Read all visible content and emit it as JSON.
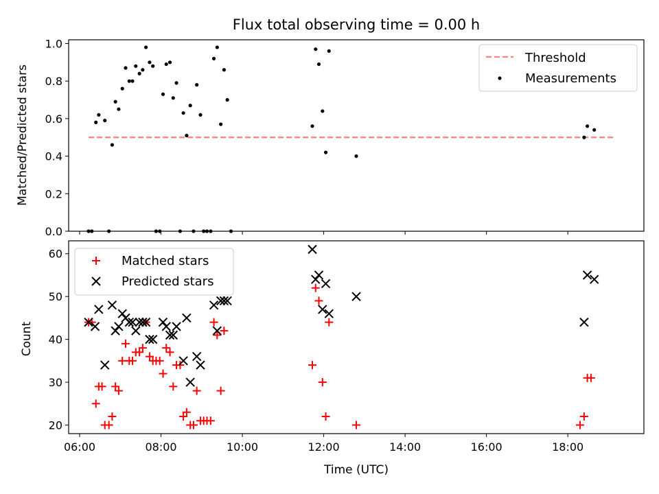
{
  "title": "Flux total observing time = 0.00 h",
  "xlabel": "Time (UTC)",
  "x_ticks": [
    "06:00",
    "08:00",
    "10:00",
    "12:00",
    "14:00",
    "16:00",
    "18:00"
  ],
  "colors": {
    "threshold": "#ff7f7f",
    "measurements": "#000000",
    "matched": "#ff0000",
    "predicted": "#000000"
  },
  "chart_data": [
    {
      "type": "scatter",
      "ylabel": "Matched/Predicted stars",
      "xlim": [
        5.73,
        19.87
      ],
      "ylim": [
        0.0,
        1.02
      ],
      "y_ticks": [
        "0.0",
        "0.2",
        "0.4",
        "0.6",
        "0.8",
        "1.0"
      ],
      "legend_position": "top-right",
      "threshold": {
        "name": "Threshold",
        "value": 0.5,
        "x_range": [
          6.22,
          19.13
        ]
      },
      "series": [
        {
          "name": "Measurements",
          "x": [
            6.22,
            6.3,
            6.4,
            6.47,
            6.62,
            6.72,
            6.8,
            6.88,
            6.96,
            7.05,
            7.13,
            7.22,
            7.3,
            7.38,
            7.47,
            7.55,
            7.63,
            7.72,
            7.8,
            7.88,
            7.97,
            8.05,
            8.13,
            8.22,
            8.3,
            8.38,
            8.47,
            8.55,
            8.63,
            8.72,
            8.8,
            8.88,
            8.97,
            9.05,
            9.13,
            9.22,
            9.3,
            9.38,
            9.47,
            9.55,
            9.63,
            9.72,
            11.72,
            11.8,
            11.88,
            11.97,
            12.05,
            12.13,
            12.8,
            18.4,
            18.48,
            18.65
          ],
          "y": [
            0.0,
            0.0,
            0.58,
            0.62,
            0.59,
            0.0,
            0.46,
            0.69,
            0.65,
            0.76,
            0.87,
            0.8,
            0.8,
            0.88,
            0.84,
            0.86,
            0.98,
            0.9,
            0.88,
            0.0,
            0.0,
            0.73,
            0.89,
            0.9,
            0.71,
            0.79,
            0.0,
            0.63,
            0.51,
            0.67,
            0.0,
            0.78,
            0.62,
            0.0,
            0.0,
            0.0,
            0.92,
            0.98,
            0.57,
            0.86,
            0.7,
            0.0,
            0.56,
            0.97,
            0.89,
            0.64,
            0.42,
            0.96,
            0.4,
            0.5,
            0.56,
            0.54
          ]
        }
      ]
    },
    {
      "type": "scatter",
      "ylabel": "Count",
      "xlim": [
        5.73,
        19.87
      ],
      "ylim": [
        18.0,
        63.0
      ],
      "y_ticks": [
        "20",
        "30",
        "40",
        "50",
        "60"
      ],
      "legend_position": "top-left",
      "series": [
        {
          "name": "Matched stars",
          "marker": "plus",
          "x": [
            6.22,
            6.3,
            6.4,
            6.47,
            6.55,
            6.62,
            6.72,
            6.8,
            6.88,
            6.96,
            7.05,
            7.13,
            7.22,
            7.3,
            7.38,
            7.47,
            7.55,
            7.63,
            7.72,
            7.8,
            7.88,
            7.97,
            8.05,
            8.13,
            8.22,
            8.3,
            8.38,
            8.47,
            8.55,
            8.63,
            8.72,
            8.8,
            8.88,
            8.97,
            9.05,
            9.13,
            9.22,
            9.3,
            9.38,
            9.47,
            9.55,
            11.72,
            11.8,
            11.88,
            11.97,
            12.05,
            12.13,
            12.8,
            18.3,
            18.4,
            18.48,
            18.57
          ],
          "y": [
            44,
            44,
            25,
            29,
            29,
            20,
            20,
            22,
            29,
            28,
            35,
            39,
            35,
            35,
            37,
            37,
            38,
            44,
            36,
            35,
            35,
            35,
            32,
            38,
            37,
            29,
            34,
            34,
            22,
            23,
            20,
            20,
            28,
            21,
            21,
            21,
            21,
            44,
            41,
            28,
            42,
            34,
            52,
            49,
            30,
            22,
            44,
            20,
            20,
            22,
            31,
            31
          ]
        },
        {
          "name": "Predicted stars",
          "marker": "x",
          "x": [
            6.22,
            6.38,
            6.47,
            6.62,
            6.8,
            6.88,
            6.96,
            7.05,
            7.13,
            7.22,
            7.3,
            7.38,
            7.47,
            7.55,
            7.63,
            7.72,
            7.8,
            8.05,
            8.13,
            8.22,
            8.3,
            8.38,
            8.55,
            8.63,
            8.72,
            8.88,
            8.97,
            9.3,
            9.38,
            9.47,
            9.55,
            9.63,
            11.72,
            11.8,
            11.88,
            11.97,
            12.05,
            12.13,
            12.8,
            18.4,
            18.48,
            18.65
          ],
          "y": [
            44,
            43,
            47,
            34,
            48,
            42,
            43,
            46,
            45,
            44,
            44,
            42,
            44,
            44,
            44,
            40,
            40,
            44,
            43,
            41,
            41,
            43,
            35,
            45,
            30,
            36,
            34,
            48,
            42,
            49,
            49,
            49,
            61,
            54,
            55,
            47,
            53,
            46,
            50,
            44,
            55,
            54
          ]
        }
      ]
    }
  ]
}
